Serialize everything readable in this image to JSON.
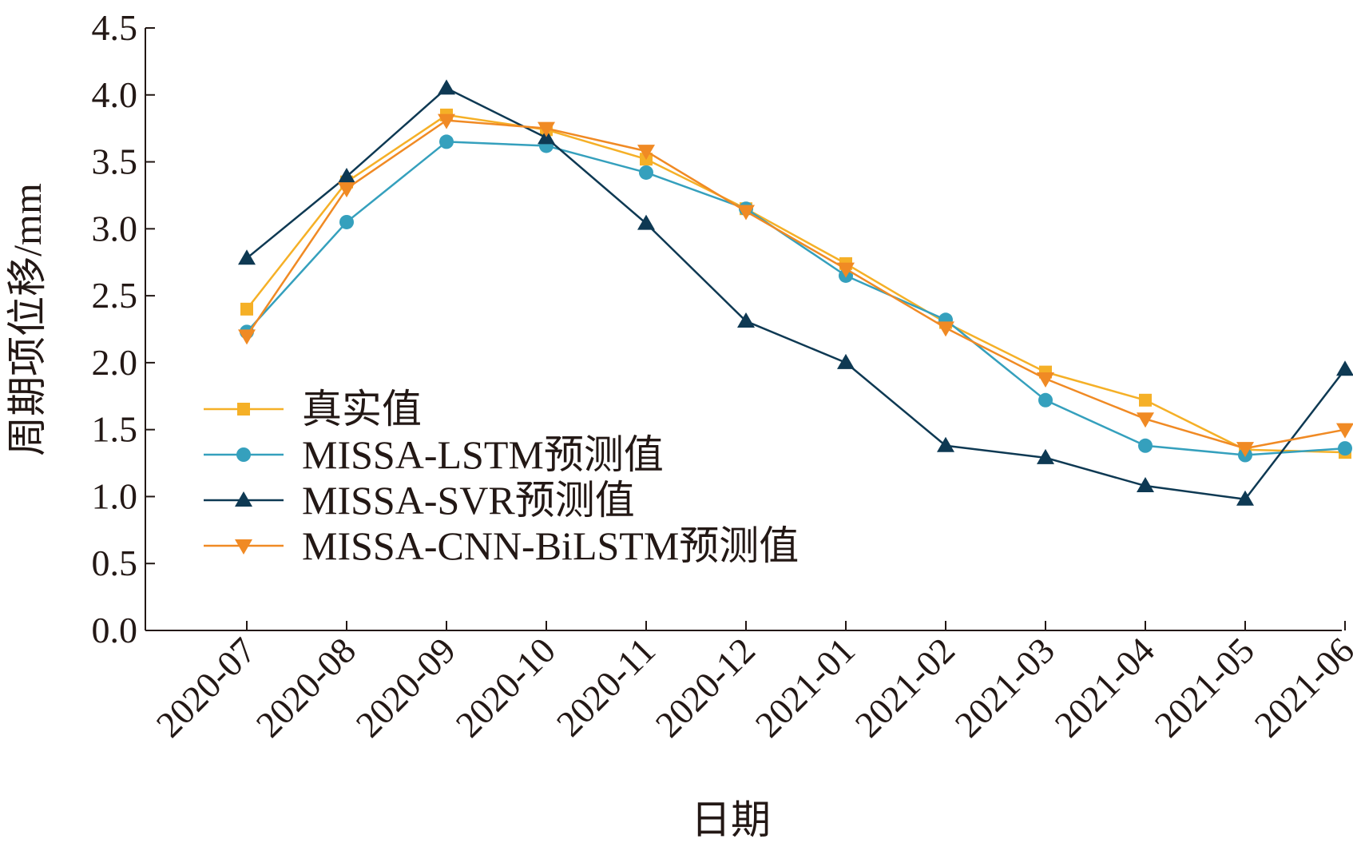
{
  "chart_data": {
    "type": "line",
    "title": "",
    "xlabel": "日期",
    "ylabel": "周期项位移/mm",
    "categories": [
      "2020-07",
      "2020-08",
      "2020-09",
      "2020-10",
      "2020-11",
      "2020-12",
      "2021-01",
      "2021-02",
      "2021-03",
      "2021-04",
      "2021-05",
      "2021-06"
    ],
    "ylim": [
      0,
      4.5
    ],
    "yticks": [
      "0.0",
      "0.5",
      "1.0",
      "1.5",
      "2.0",
      "2.5",
      "3.0",
      "3.5",
      "4.0",
      "4.5"
    ],
    "grid": false,
    "legend_position": "middle-left",
    "series": [
      {
        "name": "真实值",
        "color": "#f5b027",
        "marker": "square",
        "values": [
          2.4,
          3.35,
          3.85,
          3.74,
          3.52,
          3.15,
          2.74,
          2.3,
          1.93,
          1.72,
          1.35,
          1.33
        ]
      },
      {
        "name": "MISSA-LSTM预测值",
        "color": "#35a0bd",
        "marker": "circle",
        "values": [
          2.23,
          3.05,
          3.65,
          3.62,
          3.42,
          3.15,
          2.65,
          2.32,
          1.72,
          1.38,
          1.31,
          1.36
        ]
      },
      {
        "name": "MISSA-SVR预测值",
        "color": "#0e3953",
        "marker": "triangle-up",
        "values": [
          2.78,
          3.39,
          4.05,
          3.68,
          3.04,
          2.31,
          2.0,
          1.38,
          1.29,
          1.08,
          0.98,
          1.95
        ]
      },
      {
        "name": "MISSA-CNN-BiLSTM预测值",
        "color": "#f08a24",
        "marker": "triangle-down",
        "values": [
          2.2,
          3.3,
          3.81,
          3.75,
          3.58,
          3.13,
          2.7,
          2.26,
          1.88,
          1.58,
          1.36,
          1.5
        ]
      }
    ]
  }
}
